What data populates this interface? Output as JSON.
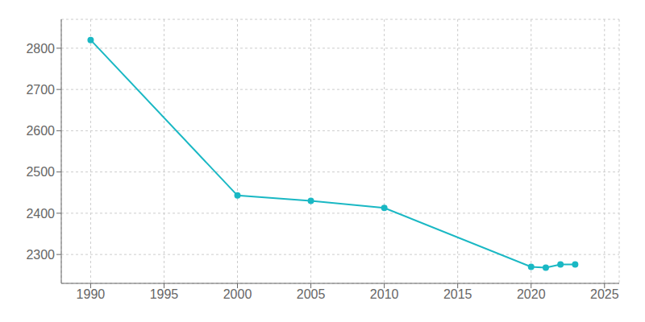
{
  "chart_data": {
    "type": "line",
    "x": [
      1990,
      2000,
      2005,
      2010,
      2020,
      2021,
      2022,
      2023
    ],
    "values": [
      2820,
      2443,
      2430,
      2413,
      2270,
      2268,
      2276,
      2276
    ],
    "color": "#1ab8c4",
    "marker": "circle",
    "xlim": [
      1988,
      2026
    ],
    "ylim": [
      2230,
      2870
    ],
    "xticks": [
      1990,
      1995,
      2000,
      2005,
      2010,
      2015,
      2020,
      2025
    ],
    "yticks": [
      2300,
      2400,
      2500,
      2600,
      2700,
      2800
    ],
    "grid": true
  }
}
